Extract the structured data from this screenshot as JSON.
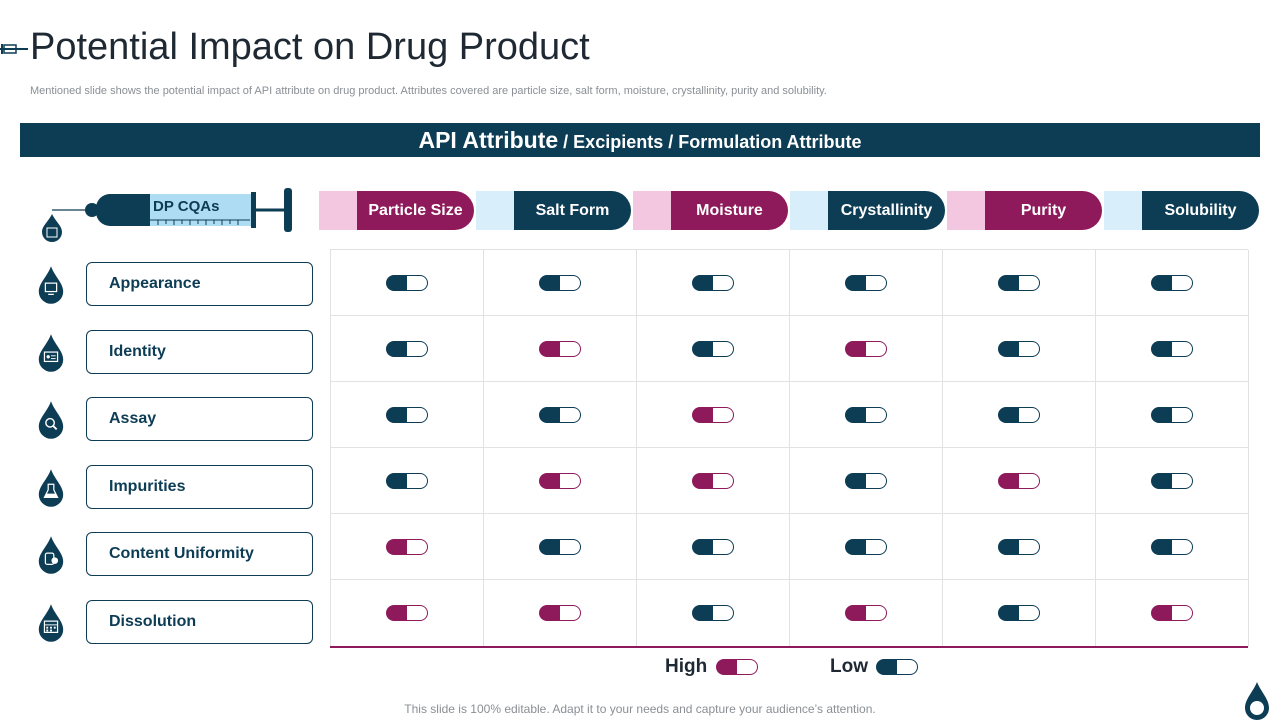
{
  "title": "Potential Impact on Drug Product",
  "subtitle": "Mentioned slide shows the potential impact of API  attribute on drug product. Attributes covered are particle size, salt form, moisture, crystallinity, purity and solubility.",
  "header": {
    "main": "API Attribute",
    "rest": " / Excipients / Formulation Attribute"
  },
  "syringe_label": "DP CQAs",
  "colors": {
    "navy": "#0d3c55",
    "magenta": "#8e1a5b",
    "light_pink": "#f3c7df",
    "light_blue": "#d8eefa"
  },
  "columns": [
    {
      "label": "Particle Size",
      "style": "magenta"
    },
    {
      "label": "Salt Form",
      "style": "navy"
    },
    {
      "label": "Moisture",
      "style": "magenta"
    },
    {
      "label": "Crystallinity",
      "style": "navy"
    },
    {
      "label": "Purity",
      "style": "magenta"
    },
    {
      "label": "Solubility",
      "style": "navy"
    }
  ],
  "rows": [
    {
      "label": "Appearance",
      "icon": "monitor-icon",
      "impact": [
        "Low",
        "Low",
        "Low",
        "Low",
        "Low",
        "Low"
      ]
    },
    {
      "label": "Identity",
      "icon": "id-card-icon",
      "impact": [
        "Low",
        "High",
        "Low",
        "High",
        "Low",
        "Low"
      ]
    },
    {
      "label": "Assay",
      "icon": "magnifier-icon",
      "impact": [
        "Low",
        "Low",
        "High",
        "Low",
        "Low",
        "Low"
      ]
    },
    {
      "label": "Impurities",
      "icon": "flask-icon",
      "impact": [
        "Low",
        "High",
        "High",
        "Low",
        "High",
        "Low"
      ]
    },
    {
      "label": "Content Uniformity",
      "icon": "tablets-icon",
      "impact": [
        "High",
        "Low",
        "Low",
        "Low",
        "Low",
        "Low"
      ]
    },
    {
      "label": "Dissolution",
      "icon": "calendar-icon",
      "impact": [
        "High",
        "High",
        "Low",
        "High",
        "Low",
        "High"
      ]
    }
  ],
  "legend": {
    "high": "High",
    "low": "Low"
  },
  "footer": "This slide is 100% editable. Adapt it to your needs and capture your audience’s attention."
}
